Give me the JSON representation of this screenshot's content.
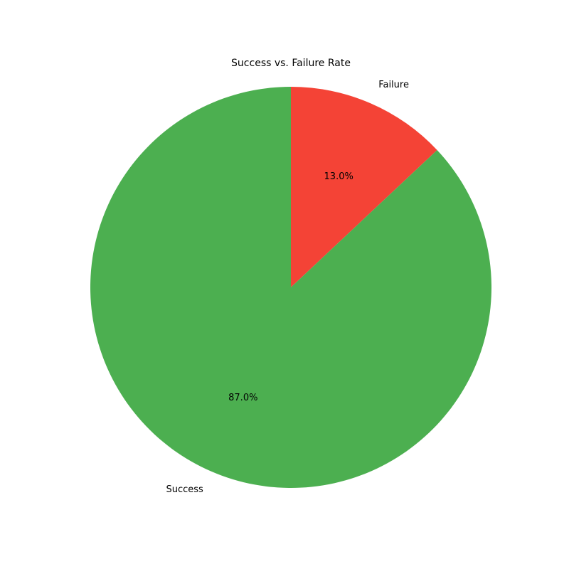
{
  "chart_data": {
    "type": "pie",
    "title": "Success vs. Failure Rate",
    "categories": [
      "Failure",
      "Success"
    ],
    "values": [
      13.0,
      87.0
    ],
    "value_labels": [
      "13.0%",
      "87.0%"
    ],
    "colors": [
      "#f44336",
      "#4caf50"
    ],
    "start_angle": 90,
    "direction": "clockwise",
    "legend": "none"
  }
}
